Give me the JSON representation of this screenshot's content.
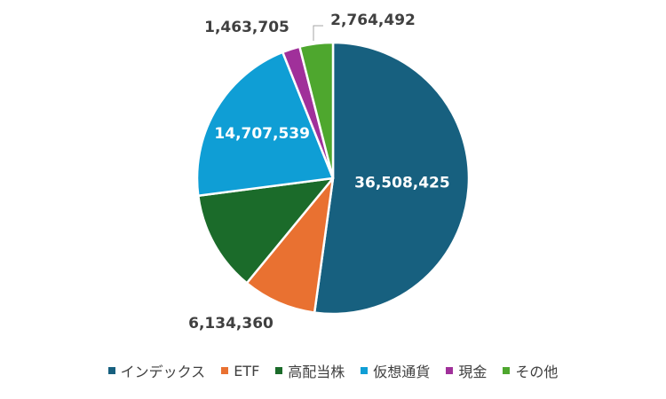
{
  "chart_data": {
    "type": "pie",
    "categories": [
      "インデックス",
      "ETF",
      "高配当株",
      "仮想通貨",
      "現金",
      "その他"
    ],
    "values": [
      36508425,
      6134360,
      8393452,
      14707539,
      1463705,
      2764492
    ],
    "data_labels": [
      "36,508,425",
      "6,134,360",
      "",
      "14,707,539",
      "1,463,705",
      "2,764,492"
    ],
    "colors": [
      "#17607f",
      "#e97131",
      "#1b6b2a",
      "#0f9ed5",
      "#a0309a",
      "#4ea72e"
    ],
    "label_colors": [
      "#ffffff",
      "#404040",
      "#ffffff",
      "#ffffff",
      "#404040",
      "#404040"
    ],
    "start_angle_deg": 0,
    "direction": "clockwise",
    "legend_position": "bottom"
  }
}
